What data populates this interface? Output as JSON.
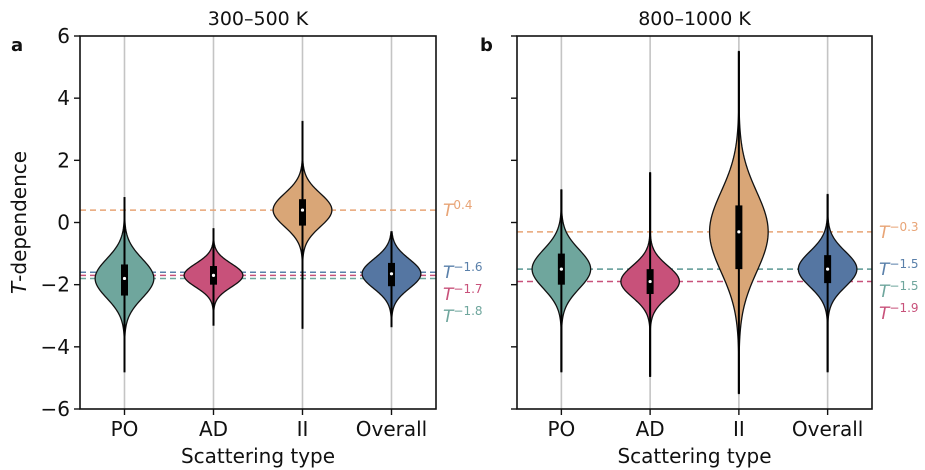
{
  "chart_data": [
    {
      "type": "violin",
      "panel_label": "a",
      "title": "300–500 K",
      "xlabel": "Scattering type",
      "ylabel_italic": "T",
      "ylabel_rest": "-dependence",
      "ylim": [
        -6,
        6
      ],
      "yticks": [
        -6,
        -4,
        -2,
        0,
        2,
        4,
        6
      ],
      "ytick_labels": [
        "−6",
        "−4",
        "−2",
        "0",
        "2",
        "4",
        "6"
      ],
      "show_ytick_labels": true,
      "grid": "vertical lines at categories",
      "categories": [
        "PO",
        "AD",
        "II",
        "Overall"
      ],
      "series": [
        {
          "category": "PO",
          "color": "#6fa69d",
          "median": -1.8,
          "q1": -2.35,
          "q3": -1.35,
          "min": -4.8,
          "max": 0.8
        },
        {
          "category": "AD",
          "color": "#c8517a",
          "median": -1.7,
          "q1": -2.0,
          "q3": -1.4,
          "min": -3.3,
          "max": -0.2
        },
        {
          "category": "II",
          "color": "#d9a677",
          "median": 0.4,
          "q1": -0.1,
          "q3": 0.75,
          "min": -3.4,
          "max": 3.25
        },
        {
          "category": "Overall",
          "color": "#5576a2",
          "median": -1.65,
          "q1": -2.05,
          "q3": -1.3,
          "min": -3.35,
          "max": -0.3
        }
      ],
      "reference_lines": [
        {
          "y": 0.4,
          "color": "#e8a476",
          "base": "T",
          "exponent": "0.4"
        },
        {
          "y": -1.6,
          "color": "#5a80aa",
          "base": "T",
          "exponent": "−1.6"
        },
        {
          "y": -1.7,
          "color": "#c8517a",
          "base": "T",
          "exponent": "−1.7"
        },
        {
          "y": -1.8,
          "color": "#6fa69d",
          "base": "T",
          "exponent": "−1.8"
        }
      ]
    },
    {
      "type": "violin",
      "panel_label": "b",
      "title": "800–1000 K",
      "xlabel": "Scattering type",
      "ylim": [
        -6,
        6
      ],
      "yticks": [
        -6,
        -4,
        -2,
        0,
        2,
        4,
        6
      ],
      "show_ytick_labels": false,
      "grid": "vertical lines at categories",
      "categories": [
        "PO",
        "AD",
        "II",
        "Overall"
      ],
      "series": [
        {
          "category": "PO",
          "color": "#6fa69d",
          "median": -1.5,
          "q1": -2.0,
          "q3": -1.0,
          "min": -4.8,
          "max": 1.05
        },
        {
          "category": "AD",
          "color": "#c8517a",
          "median": -1.9,
          "q1": -2.3,
          "q3": -1.5,
          "min": -4.95,
          "max": 1.6
        },
        {
          "category": "II",
          "color": "#d9a677",
          "median": -0.3,
          "q1": -1.5,
          "q3": 0.55,
          "min": -5.5,
          "max": 5.5
        },
        {
          "category": "Overall",
          "color": "#5576a2",
          "median": -1.5,
          "q1": -1.95,
          "q3": -1.05,
          "min": -4.8,
          "max": 0.9
        }
      ],
      "reference_lines": [
        {
          "y": -0.3,
          "color": "#e8a476",
          "base": "T",
          "exponent": "−0.3"
        },
        {
          "y": -1.5,
          "color": "#5a80aa",
          "base": "T",
          "exponent": "−1.5"
        },
        {
          "y": -1.5,
          "color": "#6fa69d",
          "base": "T",
          "exponent": "−1.5"
        },
        {
          "y": -1.9,
          "color": "#c8517a",
          "base": "T",
          "exponent": "−1.9"
        }
      ]
    }
  ]
}
